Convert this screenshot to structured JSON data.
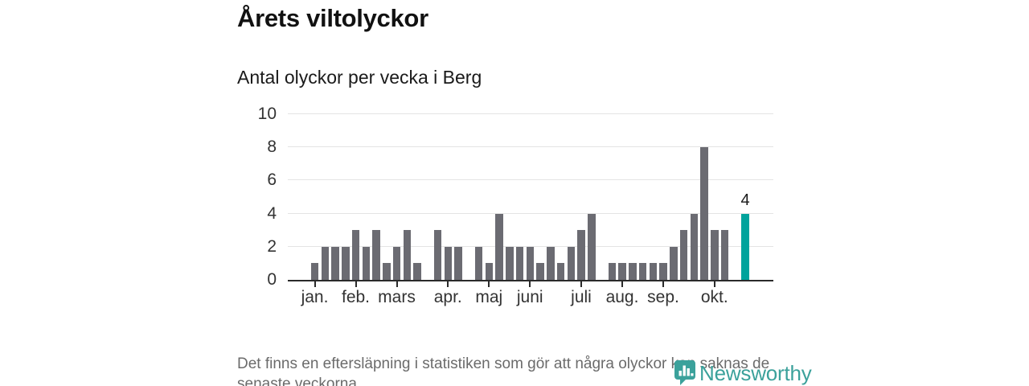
{
  "title": "Årets viltolyckor",
  "subtitle": "Antal olyckor per vecka i Berg",
  "footer": {
    "lines": [
      "Det finns en eftersläpning i statistiken som gör att några olyckor kan saknas de",
      "senaste veckorna."
    ]
  },
  "logo": {
    "name": "Newsworthy",
    "color": "#3ba19b"
  },
  "colors": {
    "bar": "#6b6b72",
    "highlight": "#00a39c",
    "grid": "#e4e4e4",
    "axis": "#2a2a2a",
    "label": "#333333",
    "title": "#111111",
    "muted": "#6b6b6b"
  },
  "chart_data": {
    "type": "bar",
    "title": "Årets viltolyckor",
    "subtitle": "Antal olyckor per vecka i Berg",
    "x_unit": "vecka (week)",
    "ylabel": "Antal olyckor",
    "ylim": [
      0,
      10
    ],
    "y_ticks": [
      0,
      2,
      4,
      6,
      8,
      10
    ],
    "grid": true,
    "values": [
      1,
      2,
      2,
      2,
      3,
      2,
      3,
      1,
      2,
      3,
      1,
      0,
      3,
      2,
      2,
      0,
      2,
      1,
      4,
      2,
      2,
      2,
      1,
      2,
      1,
      2,
      3,
      4,
      0,
      1,
      1,
      1,
      1,
      1,
      1,
      2,
      3,
      4,
      8,
      3,
      3,
      0,
      4
    ],
    "highlight_last_bar": true,
    "last_bar_value_label": "4",
    "months": [
      {
        "label": "jan.",
        "week": 1
      },
      {
        "label": "feb.",
        "week": 5
      },
      {
        "label": "mars",
        "week": 9
      },
      {
        "label": "apr.",
        "week": 14
      },
      {
        "label": "maj",
        "week": 18
      },
      {
        "label": "juni",
        "week": 22
      },
      {
        "label": "juli",
        "week": 27
      },
      {
        "label": "aug.",
        "week": 31
      },
      {
        "label": "sep.",
        "week": 35
      },
      {
        "label": "okt.",
        "week": 40
      }
    ]
  }
}
